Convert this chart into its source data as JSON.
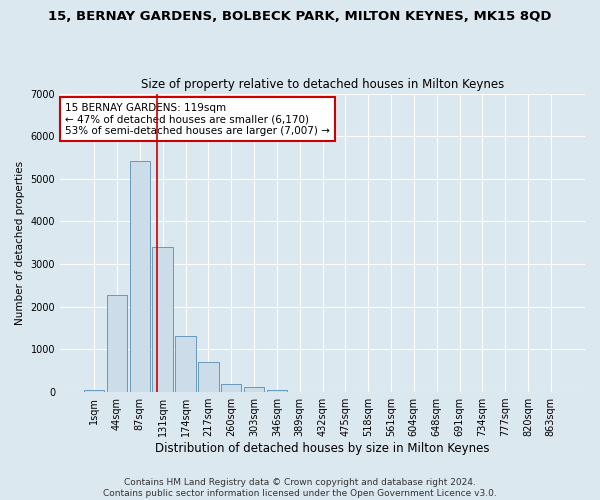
{
  "title1": "15, BERNAY GARDENS, BOLBECK PARK, MILTON KEYNES, MK15 8QD",
  "title2": "Size of property relative to detached houses in Milton Keynes",
  "xlabel": "Distribution of detached houses by size in Milton Keynes",
  "ylabel": "Number of detached properties",
  "categories": [
    "1sqm",
    "44sqm",
    "87sqm",
    "131sqm",
    "174sqm",
    "217sqm",
    "260sqm",
    "303sqm",
    "346sqm",
    "389sqm",
    "432sqm",
    "475sqm",
    "518sqm",
    "561sqm",
    "604sqm",
    "648sqm",
    "691sqm",
    "734sqm",
    "777sqm",
    "820sqm",
    "863sqm"
  ],
  "values": [
    50,
    2270,
    5420,
    3400,
    1310,
    700,
    200,
    110,
    55,
    5,
    0,
    0,
    0,
    0,
    0,
    0,
    0,
    0,
    0,
    0,
    0
  ],
  "bar_color": "#ccdce8",
  "bar_edge_color": "#6699bb",
  "vline_color": "#cc0000",
  "annotation_text": "15 BERNAY GARDENS: 119sqm\n← 47% of detached houses are smaller (6,170)\n53% of semi-detached houses are larger (7,007) →",
  "annotation_box_color": "white",
  "annotation_box_edge": "#cc0000",
  "ylim": [
    0,
    7000
  ],
  "yticks": [
    0,
    1000,
    2000,
    3000,
    4000,
    5000,
    6000,
    7000
  ],
  "footer1": "Contains HM Land Registry data © Crown copyright and database right 2024.",
  "footer2": "Contains public sector information licensed under the Open Government Licence v3.0.",
  "bg_color": "#dce8f0",
  "plot_bg_color": "#dce8f0",
  "grid_color": "white",
  "title1_fontsize": 9.5,
  "title2_fontsize": 8.5,
  "xlabel_fontsize": 8.5,
  "ylabel_fontsize": 7.5,
  "tick_fontsize": 7,
  "footer_fontsize": 6.5,
  "annotation_fontsize": 7.5
}
